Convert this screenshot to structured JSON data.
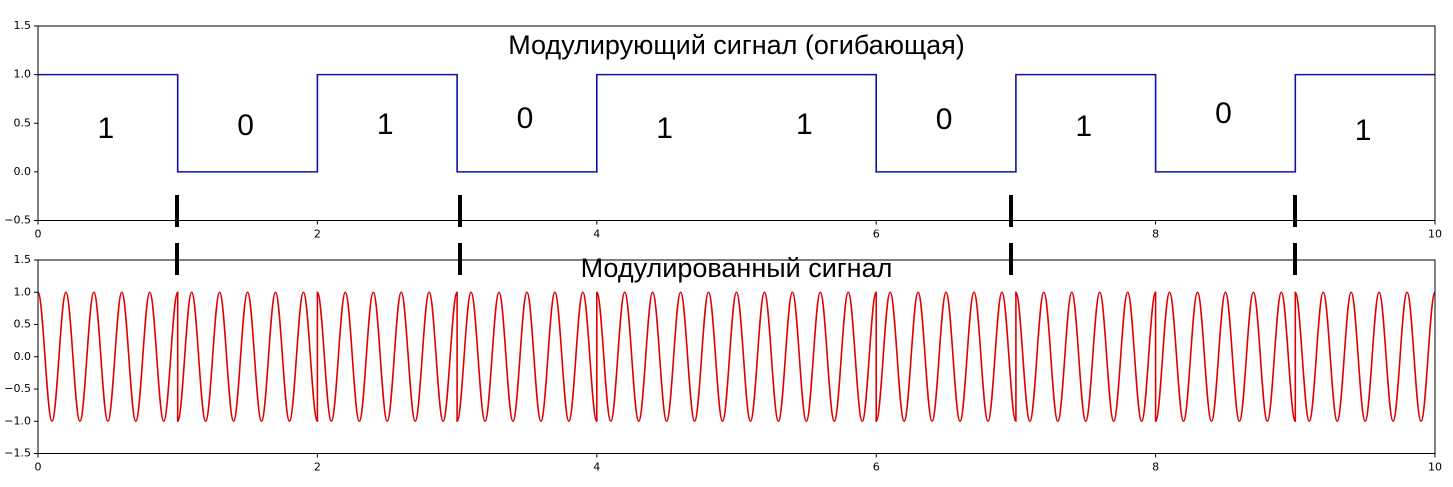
{
  "chart_data": [
    {
      "type": "line",
      "title": "Модулирующий сигнал (огибающая)",
      "color": "#1010a8",
      "x": [
        0,
        1,
        1,
        2,
        2,
        3,
        3,
        4,
        4,
        6,
        6,
        7,
        7,
        8,
        8,
        9,
        9,
        10
      ],
      "values": [
        1,
        1,
        0,
        0,
        1,
        1,
        0,
        0,
        1,
        1,
        0,
        0,
        1,
        1,
        0,
        0,
        1,
        1
      ],
      "annotations": [
        "1",
        "0",
        "1",
        "0",
        "1",
        "1",
        "0",
        "1",
        "0",
        "1"
      ],
      "xlim": [
        0,
        10
      ],
      "xticks": [
        0,
        2,
        4,
        6,
        8,
        10
      ],
      "ylim": [
        -0.5,
        1.5
      ],
      "yticks": [
        {
          "value": -0.5,
          "label": "−0.5"
        },
        {
          "value": 0,
          "label": "0.0"
        },
        0.5,
        {
          "value": 1,
          "label": "1.0"
        },
        1.5
      ]
    },
    {
      "type": "line",
      "title": "Модулированный сигнал",
      "color": "#e00000",
      "x": [
        0,
        0.1,
        0.2,
        0.3,
        0.4,
        0.5,
        0.6,
        0.7,
        0.8,
        0.9,
        1,
        1,
        1.1,
        1.2,
        1.3,
        1.4,
        1.5,
        1.6,
        1.7,
        1.8,
        1.9,
        2,
        2,
        2.1,
        2.2,
        2.3,
        2.4,
        2.5,
        2.6,
        2.7,
        2.8,
        2.9,
        3,
        3,
        3.1,
        3.2,
        3.3,
        3.4,
        3.5,
        3.6,
        3.7,
        3.8,
        3.9,
        4,
        4,
        4.1,
        4.2,
        4.3,
        4.4,
        4.5,
        4.6,
        4.7,
        4.8,
        4.9,
        5,
        5,
        5.1,
        5.2,
        5.3,
        5.4,
        5.5,
        5.6,
        5.7,
        5.8,
        5.9,
        6,
        6,
        6.1,
        6.2,
        6.3,
        6.4,
        6.5,
        6.6,
        6.7,
        6.8,
        6.9,
        7,
        7,
        7.1,
        7.2,
        7.3,
        7.4,
        7.5,
        7.6,
        7.7,
        7.8,
        7.9,
        8,
        8,
        8.1,
        8.2,
        8.3,
        8.4,
        8.5,
        8.6,
        8.7,
        8.8,
        8.9,
        9,
        9,
        9.1,
        9.2,
        9.3,
        9.4,
        9.5,
        9.6,
        9.7,
        9.8,
        9.9,
        10
      ],
      "values": [
        1,
        -1,
        1,
        -1,
        1,
        -1,
        1,
        -1,
        1,
        -1,
        1,
        -1,
        1,
        -1,
        1,
        -1,
        1,
        -1,
        1,
        -1,
        1,
        -1,
        1,
        -1,
        1,
        -1,
        1,
        -1,
        1,
        -1,
        1,
        -1,
        1,
        -1,
        1,
        -1,
        1,
        -1,
        1,
        -1,
        1,
        -1,
        1,
        -1,
        1,
        -1,
        1,
        -1,
        1,
        -1,
        1,
        -1,
        1,
        -1,
        1,
        1,
        -1,
        1,
        -1,
        1,
        -1,
        1,
        -1,
        1,
        -1,
        1,
        -1,
        1,
        -1,
        1,
        -1,
        1,
        -1,
        1,
        -1,
        1,
        -1,
        1,
        -1,
        1,
        -1,
        1,
        -1,
        1,
        -1,
        1,
        -1,
        1,
        -1,
        1,
        -1,
        1,
        -1,
        1,
        -1,
        1,
        -1,
        1,
        -1,
        1,
        -1,
        1,
        -1,
        1,
        -1,
        1,
        -1,
        1,
        -1,
        1
      ],
      "xlim": [
        0,
        10
      ],
      "xticks": [
        0,
        2,
        4,
        6,
        8,
        10
      ],
      "ylim": [
        -1.5,
        1.5
      ],
      "yticks": [
        {
          "value": -1.5,
          "label": "−1.5"
        },
        {
          "value": -1,
          "label": "−1.0"
        },
        {
          "value": -0.5,
          "label": "−0.5"
        },
        {
          "value": 0,
          "label": "0.0"
        },
        0.5,
        {
          "value": 1,
          "label": "1.0"
        },
        1.5
      ]
    }
  ]
}
